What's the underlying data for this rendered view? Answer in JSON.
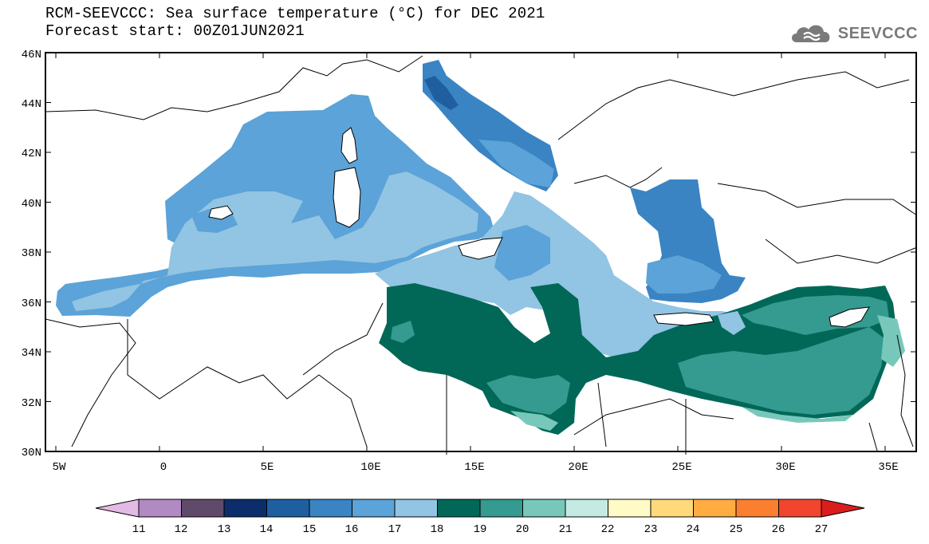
{
  "header": {
    "title_line1": "RCM-SEEVCCC: Sea surface temperature (°C) for DEC 2021",
    "title_line2": "Forecast start: 00Z01JUN2021",
    "logo_text": "SEEVCCC"
  },
  "map": {
    "lat_ticks": [
      "46N",
      "44N",
      "42N",
      "40N",
      "38N",
      "36N",
      "34N",
      "32N",
      "30N"
    ],
    "lon_ticks": [
      "5W",
      "0",
      "5E",
      "10E",
      "15E",
      "20E",
      "25E",
      "30E",
      "35E"
    ],
    "lon_range": [
      -5.5,
      36.5
    ],
    "lat_range": [
      30,
      46
    ],
    "colors": {
      "sst_16": "#5ba3d8",
      "sst_17": "#92c4e3",
      "sst_15": "#3a84c3",
      "sst_14": "#1f5fa0",
      "sst_19": "#016858",
      "sst_20": "#359a8f",
      "sst_21": "#77c8bb",
      "land": "#ffffff",
      "coast": "#000000"
    }
  },
  "colorbar": {
    "labels": [
      "11",
      "12",
      "13",
      "14",
      "15",
      "16",
      "17",
      "18",
      "19",
      "20",
      "21",
      "22",
      "23",
      "24",
      "25",
      "26",
      "27"
    ],
    "low_color": "#e3b9e6",
    "high_color": "#da1e1e",
    "colors": [
      "#b28ac3",
      "#5f4a6a",
      "#0b2d6b",
      "#1f5fa0",
      "#3a84c3",
      "#5ba3d8",
      "#92c4e3",
      "#016858",
      "#359a8f",
      "#77c8bb",
      "#c3ebe4",
      "#fffbc6",
      "#ffd97a",
      "#ffad42",
      "#fb7f31",
      "#f2452e"
    ]
  }
}
